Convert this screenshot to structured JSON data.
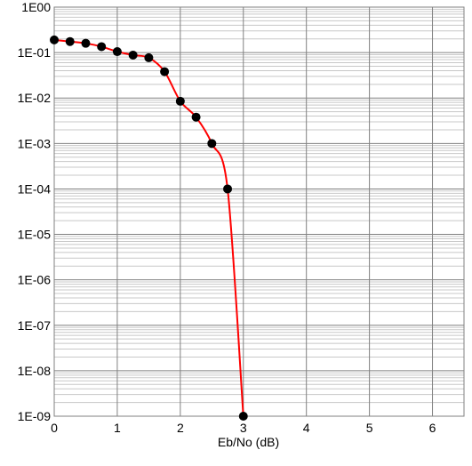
{
  "chart_data": {
    "type": "line",
    "title": "",
    "xlabel": "Eb/No (dB)",
    "ylabel": "",
    "x_scale": "linear",
    "y_scale": "log",
    "xlim": [
      0,
      6.5
    ],
    "ylim": [
      1e-09,
      1
    ],
    "x_ticks": [
      0,
      1,
      2,
      3,
      4,
      5,
      6
    ],
    "x_tick_labels": [
      "0",
      "1",
      "2",
      "3",
      "4",
      "5",
      "6"
    ],
    "y_ticks": [
      1,
      0.1,
      0.01,
      0.001,
      0.0001,
      1e-05,
      1e-06,
      1e-07,
      1e-08,
      1e-09
    ],
    "y_tick_labels": [
      "1E00",
      "1E-01",
      "1E-02",
      "1E-03",
      "1E-04",
      "1E-05",
      "1E-06",
      "1E-07",
      "1E-08",
      "1E-09"
    ],
    "grid": true,
    "minor_grid": true,
    "legend": "none",
    "series": [
      {
        "color": "#ff0000",
        "marker_color": "#000000",
        "marker": "circle",
        "points": [
          {
            "x": 0.0,
            "y": 0.19
          },
          {
            "x": 0.25,
            "y": 0.175
          },
          {
            "x": 0.5,
            "y": 0.16
          },
          {
            "x": 0.75,
            "y": 0.135
          },
          {
            "x": 1.0,
            "y": 0.105
          },
          {
            "x": 1.25,
            "y": 0.088
          },
          {
            "x": 1.5,
            "y": 0.077
          },
          {
            "x": 1.75,
            "y": 0.038
          },
          {
            "x": 2.0,
            "y": 0.0085
          },
          {
            "x": 2.25,
            "y": 0.0038
          },
          {
            "x": 2.5,
            "y": 0.001
          },
          {
            "x": 2.75,
            "y": 0.0001
          },
          {
            "x": 3.0,
            "y": 1e-09
          }
        ]
      }
    ]
  }
}
